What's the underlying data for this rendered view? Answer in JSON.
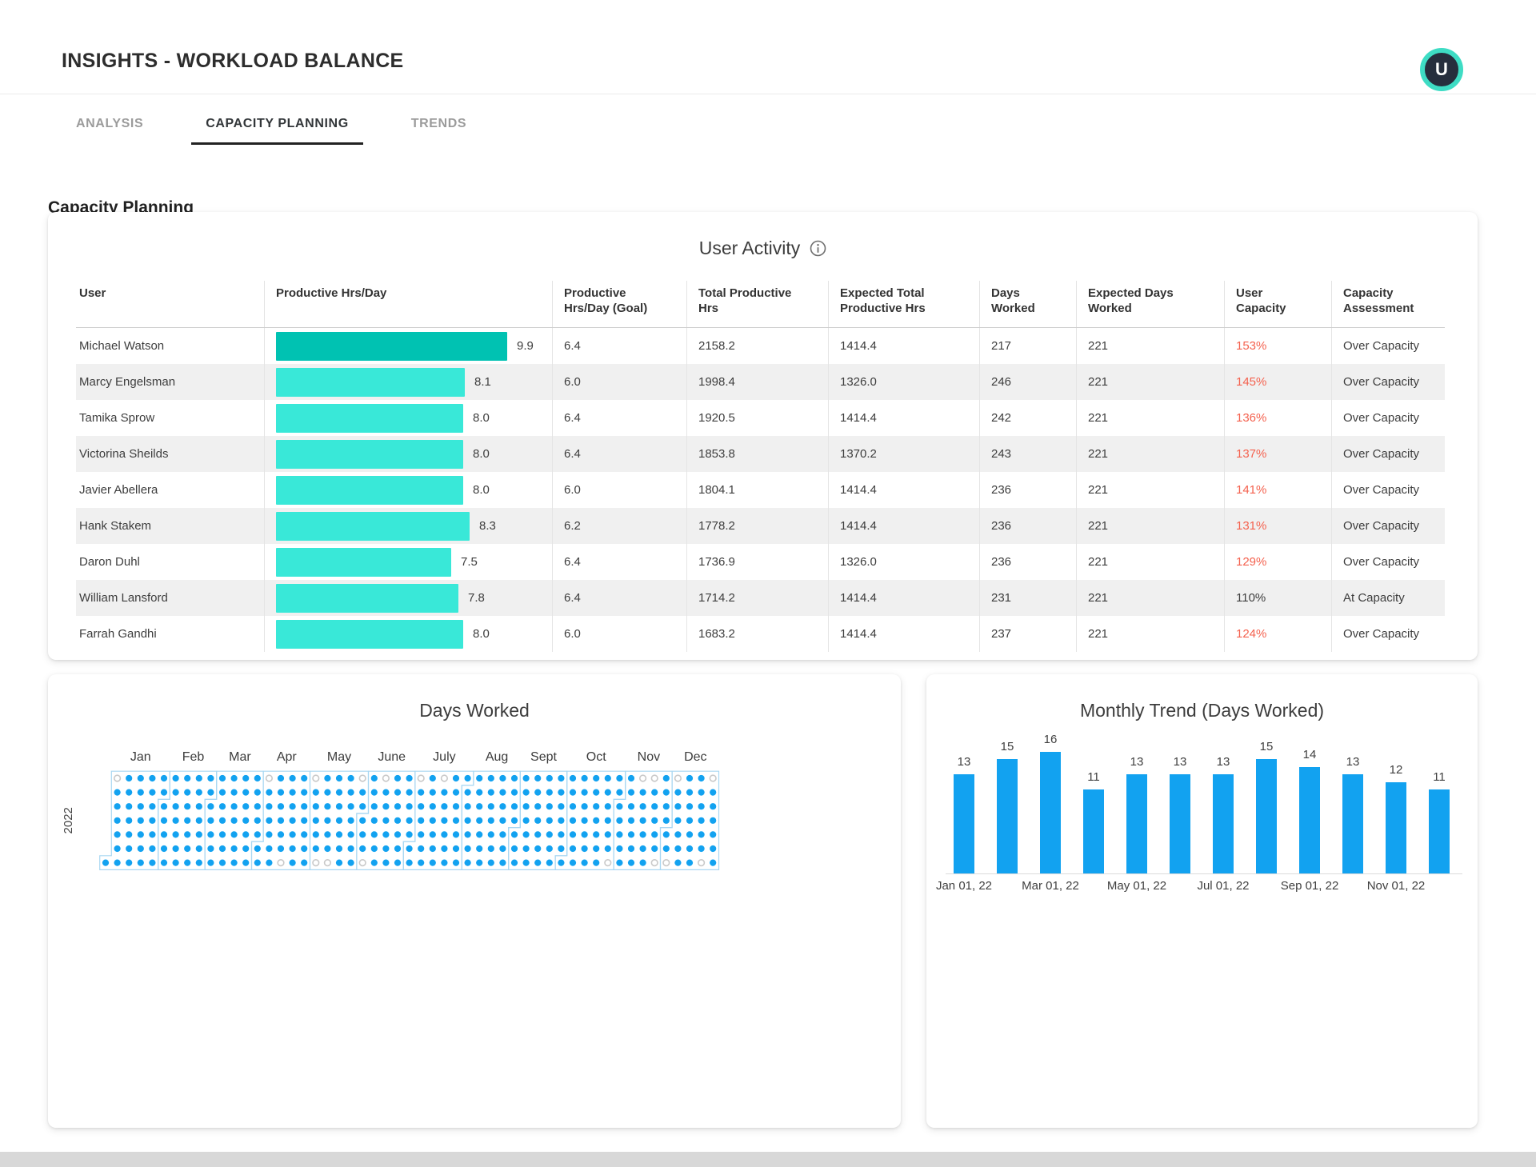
{
  "header": {
    "title": "INSIGHTS - WORKLOAD BALANCE",
    "avatar_initial": "U",
    "avatar_bg": "#262e3d",
    "avatar_ring": "#3edcc4"
  },
  "tabs": {
    "items": [
      {
        "label": "ANALYSIS",
        "active": false
      },
      {
        "label": "CAPACITY PLANNING",
        "active": true
      },
      {
        "label": "TRENDS",
        "active": false
      }
    ]
  },
  "section_heading": "Capacity Planning",
  "user_activity": {
    "title": "User Activity",
    "info_icon": "info-circle-icon",
    "columns": [
      "User",
      "Productive Hrs/Day",
      "Productive\nHrs/Day (Goal)",
      "Total Productive\nHrs",
      "Expected Total\nProductive Hrs",
      "Days\nWorked",
      "Expected Days\nWorked",
      "User\nCapacity",
      "Capacity\nAssessment"
    ],
    "bar_scale_max": 9.9,
    "bar_colors": {
      "first_row": "#00c2b2",
      "other_rows": "#39e8d8"
    },
    "capacity_alert_color": "#f4614e",
    "rows": [
      {
        "user": "Michael Watson",
        "hrs": "9.9",
        "goal": "6.4",
        "total": "2158.2",
        "expected_total": "1414.4",
        "days": "217",
        "expected_days": "221",
        "capacity": "153%",
        "capacity_alert": true,
        "assessment": "Over Capacity"
      },
      {
        "user": "Marcy Engelsman",
        "hrs": "8.1",
        "goal": "6.0",
        "total": "1998.4",
        "expected_total": "1326.0",
        "days": "246",
        "expected_days": "221",
        "capacity": "145%",
        "capacity_alert": true,
        "assessment": "Over Capacity"
      },
      {
        "user": "Tamika Sprow",
        "hrs": "8.0",
        "goal": "6.4",
        "total": "1920.5",
        "expected_total": "1414.4",
        "days": "242",
        "expected_days": "221",
        "capacity": "136%",
        "capacity_alert": true,
        "assessment": "Over Capacity"
      },
      {
        "user": "Victorina Sheilds",
        "hrs": "8.0",
        "goal": "6.4",
        "total": "1853.8",
        "expected_total": "1370.2",
        "days": "243",
        "expected_days": "221",
        "capacity": "137%",
        "capacity_alert": true,
        "assessment": "Over Capacity"
      },
      {
        "user": "Javier Abellera",
        "hrs": "8.0",
        "goal": "6.0",
        "total": "1804.1",
        "expected_total": "1414.4",
        "days": "236",
        "expected_days": "221",
        "capacity": "141%",
        "capacity_alert": true,
        "assessment": "Over Capacity"
      },
      {
        "user": "Hank Stakem",
        "hrs": "8.3",
        "goal": "6.2",
        "total": "1778.2",
        "expected_total": "1414.4",
        "days": "236",
        "expected_days": "221",
        "capacity": "131%",
        "capacity_alert": true,
        "assessment": "Over Capacity"
      },
      {
        "user": "Daron Duhl",
        "hrs": "7.5",
        "goal": "6.4",
        "total": "1736.9",
        "expected_total": "1326.0",
        "days": "236",
        "expected_days": "221",
        "capacity": "129%",
        "capacity_alert": true,
        "assessment": "Over Capacity"
      },
      {
        "user": "William Lansford",
        "hrs": "7.8",
        "goal": "6.4",
        "total": "1714.2",
        "expected_total": "1414.4",
        "days": "231",
        "expected_days": "221",
        "capacity": "110%",
        "capacity_alert": false,
        "assessment": "At Capacity"
      },
      {
        "user": "Farrah Gandhi",
        "hrs": "8.0",
        "goal": "6.0",
        "total": "1683.2",
        "expected_total": "1414.4",
        "days": "237",
        "expected_days": "221",
        "capacity": "124%",
        "capacity_alert": true,
        "assessment": "Over Capacity"
      }
    ]
  },
  "chart_data": [
    {
      "type": "heatmap",
      "subtype": "calendar-dot-matrix",
      "title": "Days Worked",
      "year_label": "2022",
      "month_labels": [
        "Jan",
        "Feb",
        "Mar",
        "Apr",
        "May",
        "June",
        "July",
        "Aug",
        "Sept",
        "Oct",
        "Nov",
        "Dec"
      ],
      "jan1_weekday_row": 6,
      "days_in_year": 365,
      "worked_dot_color": "#12a2f0",
      "off_dot_ring_color": "#c9c9c9",
      "month_outline_color": "#a9d7f2",
      "off_days": [
        "2022-01-02",
        "2022-04-03",
        "2022-04-16",
        "2022-05-01",
        "2022-05-07",
        "2022-05-14",
        "2022-05-29",
        "2022-06-04",
        "2022-06-12",
        "2022-07-03",
        "2022-07-17",
        "2022-10-29",
        "2022-11-13",
        "2022-11-20",
        "2022-11-26",
        "2022-12-03",
        "2022-12-04",
        "2022-12-24",
        "2022-12-25"
      ]
    },
    {
      "type": "bar",
      "title": "Monthly Trend (Days Worked)",
      "values": [
        13,
        15,
        16,
        11,
        13,
        13,
        13,
        15,
        14,
        13,
        12,
        11
      ],
      "x_tick_labels": [
        "Jan 01, 22",
        "Mar 01, 22",
        "May 01, 22",
        "Jul 01, 22",
        "Sep 01, 22",
        "Nov 01, 22"
      ],
      "x_tick_bar_indexes": [
        0,
        2,
        4,
        6,
        8,
        10
      ],
      "bar_color": "#12a2f0",
      "ylim": [
        0,
        16
      ],
      "grid": false,
      "data_labels": true
    }
  ]
}
